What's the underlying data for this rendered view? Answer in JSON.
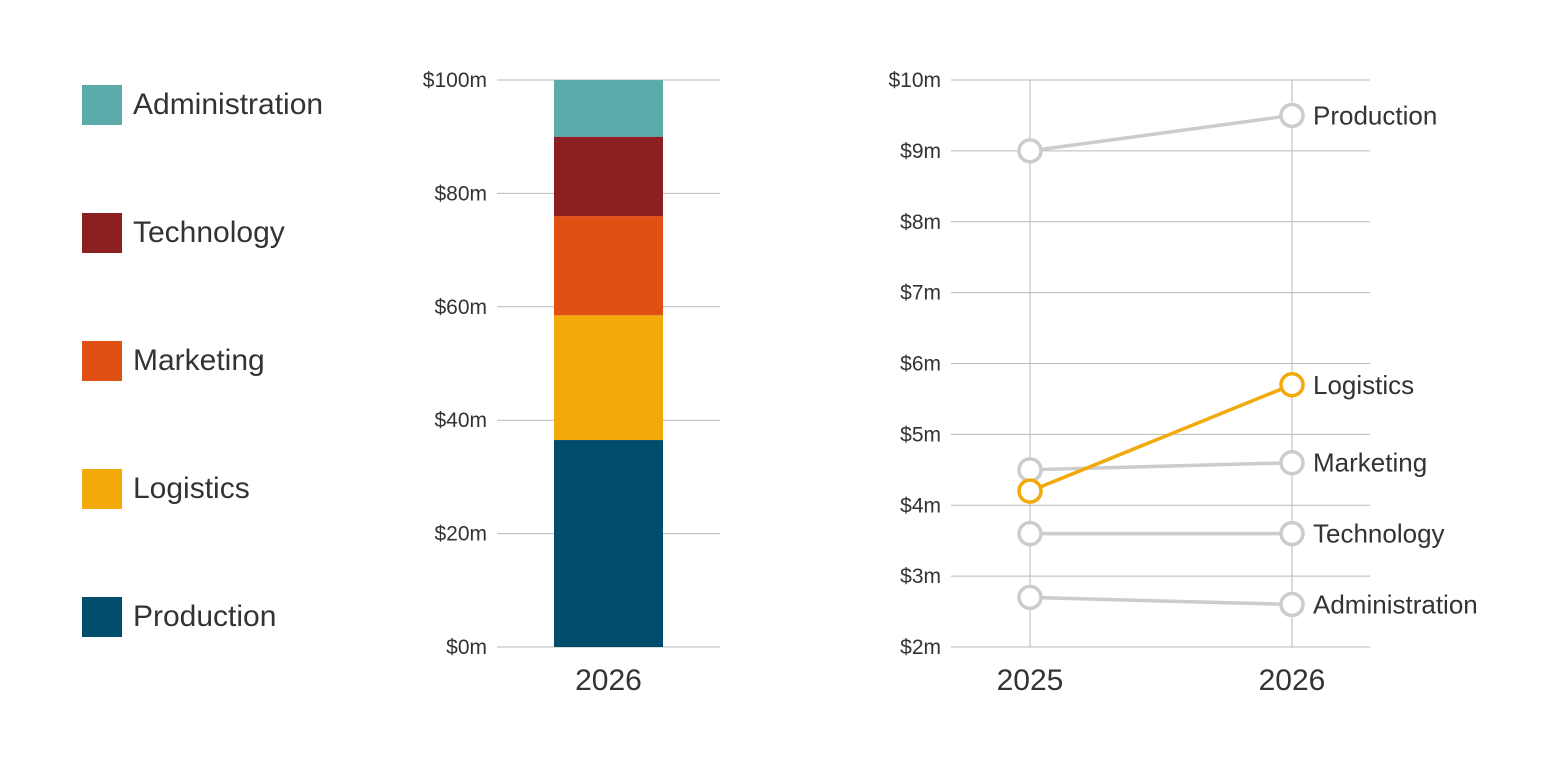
{
  "chart_data": [
    {
      "type": "bar",
      "stacked": true,
      "categories": [
        "2026"
      ],
      "series": [
        {
          "name": "Production",
          "values": [
            36.5
          ],
          "color": "#004c6d"
        },
        {
          "name": "Logistics",
          "values": [
            22
          ],
          "color": "#f2a90a"
        },
        {
          "name": "Marketing",
          "values": [
            17.5
          ],
          "color": "#e15013"
        },
        {
          "name": "Technology",
          "values": [
            14
          ],
          "color": "#8b1f22"
        },
        {
          "name": "Administration",
          "values": [
            10
          ],
          "color": "#5aabaa"
        }
      ],
      "ylim": [
        0,
        100
      ],
      "yticks": [
        "$0m",
        "$20m",
        "$40m",
        "$60m",
        "$80m",
        "$100m"
      ],
      "ytick_values": [
        0,
        20,
        40,
        60,
        80,
        100
      ],
      "grid": true,
      "legend": "left"
    },
    {
      "type": "line",
      "x": [
        "2025",
        "2026"
      ],
      "series": [
        {
          "name": "Production",
          "values": [
            9.0,
            9.5
          ],
          "color": "#cccccc"
        },
        {
          "name": "Logistics",
          "values": [
            4.2,
            5.7
          ],
          "color": "#f2a90a",
          "highlighted": true
        },
        {
          "name": "Marketing",
          "values": [
            4.5,
            4.6
          ],
          "color": "#cccccc"
        },
        {
          "name": "Technology",
          "values": [
            3.6,
            3.6
          ],
          "color": "#cccccc"
        },
        {
          "name": "Administration",
          "values": [
            2.7,
            2.6
          ],
          "color": "#cccccc"
        }
      ],
      "ylim": [
        2,
        10
      ],
      "yticks": [
        "$2m",
        "$3m",
        "$4m",
        "$5m",
        "$6m",
        "$7m",
        "$8m",
        "$9m",
        "$10m"
      ],
      "ytick_values": [
        2,
        3,
        4,
        5,
        6,
        7,
        8,
        9,
        10
      ],
      "grid": true,
      "legend": "direct labels at right"
    }
  ],
  "legend": {
    "items": [
      {
        "label": "Administration",
        "color": "#5aabaa"
      },
      {
        "label": "Technology",
        "color": "#8b1f22"
      },
      {
        "label": "Marketing",
        "color": "#e15013"
      },
      {
        "label": "Logistics",
        "color": "#f2a90a"
      },
      {
        "label": "Production",
        "color": "#004c6d"
      }
    ]
  }
}
